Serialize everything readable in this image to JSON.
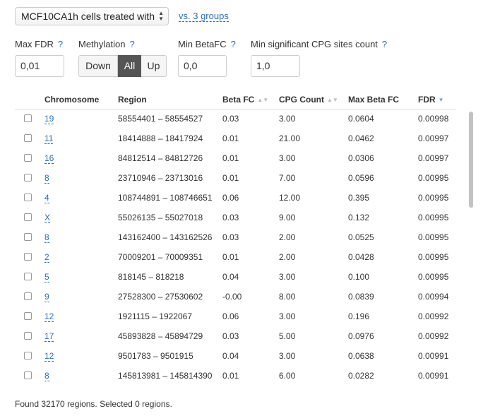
{
  "group_select": {
    "value": "MCF10CA1h cells treated with",
    "arrows": "▲▼"
  },
  "vs_link": "vs. 3 groups",
  "filters": {
    "max_fdr": {
      "label": "Max FDR",
      "help": "?",
      "value": "0,01"
    },
    "methylation": {
      "label": "Methylation",
      "help": "?",
      "options": [
        "Down",
        "All",
        "Up"
      ],
      "selected": "All"
    },
    "min_betafc": {
      "label": "Min BetaFC",
      "help": "?",
      "value": "0,0"
    },
    "min_cpg": {
      "label": "Min significant CPG sites count",
      "help": "?",
      "value": "1,0"
    }
  },
  "table": {
    "columns": [
      "Chromosome",
      "Region",
      "Beta FC",
      "CPG Count",
      "Max Beta FC",
      "FDR"
    ],
    "sort_icons": {
      "beta_fc": "▲▼",
      "cpg_count": "▲▼",
      "fdr": "▼"
    },
    "rows": [
      {
        "chromosome": "19",
        "region": "58554401 – 58554527",
        "beta_fc": "0.03",
        "cpg_count": "3.00",
        "max_beta_fc": "0.0604",
        "fdr": "0.00998"
      },
      {
        "chromosome": "11",
        "region": "18414888 – 18417924",
        "beta_fc": "0.01",
        "cpg_count": "21.00",
        "max_beta_fc": "0.0462",
        "fdr": "0.00997"
      },
      {
        "chromosome": "16",
        "region": "84812514 – 84812726",
        "beta_fc": "0.01",
        "cpg_count": "3.00",
        "max_beta_fc": "0.0306",
        "fdr": "0.00997"
      },
      {
        "chromosome": "8",
        "region": "23710946 – 23713016",
        "beta_fc": "0.01",
        "cpg_count": "7.00",
        "max_beta_fc": "0.0596",
        "fdr": "0.00995"
      },
      {
        "chromosome": "4",
        "region": "108744891 – 108746651",
        "beta_fc": "0.06",
        "cpg_count": "12.00",
        "max_beta_fc": "0.395",
        "fdr": "0.00995"
      },
      {
        "chromosome": "X",
        "region": "55026135 – 55027018",
        "beta_fc": "0.03",
        "cpg_count": "9.00",
        "max_beta_fc": "0.132",
        "fdr": "0.00995"
      },
      {
        "chromosome": "8",
        "region": "143162400 – 143162526",
        "beta_fc": "0.03",
        "cpg_count": "2.00",
        "max_beta_fc": "0.0525",
        "fdr": "0.00995"
      },
      {
        "chromosome": "2",
        "region": "70009201 – 70009351",
        "beta_fc": "0.01",
        "cpg_count": "2.00",
        "max_beta_fc": "0.0428",
        "fdr": "0.00995"
      },
      {
        "chromosome": "5",
        "region": "818145 – 818218",
        "beta_fc": "0.04",
        "cpg_count": "3.00",
        "max_beta_fc": "0.100",
        "fdr": "0.00995"
      },
      {
        "chromosome": "9",
        "region": "27528300 – 27530602",
        "beta_fc": "-0.00",
        "cpg_count": "8.00",
        "max_beta_fc": "0.0839",
        "fdr": "0.00994"
      },
      {
        "chromosome": "12",
        "region": "1921115 – 1922067",
        "beta_fc": "0.06",
        "cpg_count": "3.00",
        "max_beta_fc": "0.196",
        "fdr": "0.00992"
      },
      {
        "chromosome": "17",
        "region": "45893828 – 45894729",
        "beta_fc": "0.03",
        "cpg_count": "5.00",
        "max_beta_fc": "0.0976",
        "fdr": "0.00992"
      },
      {
        "chromosome": "12",
        "region": "9501783 – 9501915",
        "beta_fc": "0.04",
        "cpg_count": "3.00",
        "max_beta_fc": "0.0638",
        "fdr": "0.00991"
      },
      {
        "chromosome": "8",
        "region": "145813981 – 145814390",
        "beta_fc": "0.01",
        "cpg_count": "6.00",
        "max_beta_fc": "0.0282",
        "fdr": "0.00991"
      }
    ]
  },
  "footer": "Found 32170 regions. Selected 0 regions.",
  "colors": {
    "link": "#2a6ebb",
    "selected_segment": "#555555"
  }
}
